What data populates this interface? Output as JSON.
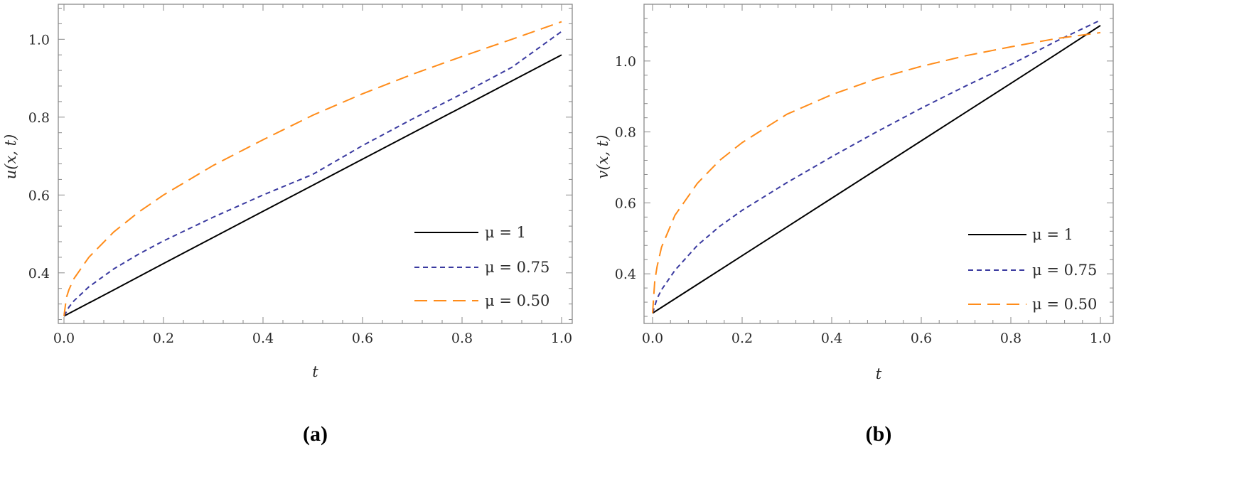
{
  "chart_data": [
    {
      "type": "line",
      "panel_label": "(a)",
      "xlabel": "t",
      "ylabel": "u(x, t)",
      "xlim": [
        0,
        1
      ],
      "ylim": [
        0.27,
        1.09
      ],
      "xticks": [
        "0.0",
        "0.2",
        "0.4",
        "0.6",
        "0.8",
        "1.0"
      ],
      "yticks": [
        "0.4",
        "0.6",
        "0.8",
        "1.0"
      ],
      "legend_position": "bottom-right",
      "series": [
        {
          "name": "μ = 1",
          "style": "solid",
          "color": "#000000",
          "x": [
            0,
            0.1,
            0.2,
            0.3,
            0.4,
            0.5,
            0.6,
            0.7,
            0.8,
            0.9,
            1.0
          ],
          "y": [
            0.289,
            0.356,
            0.424,
            0.491,
            0.558,
            0.625,
            0.692,
            0.759,
            0.826,
            0.893,
            0.96
          ]
        },
        {
          "name": "μ = 0.75",
          "style": "short-dash",
          "color": "#3a3aa0",
          "x": [
            0,
            0.01,
            0.02,
            0.05,
            0.1,
            0.15,
            0.2,
            0.3,
            0.4,
            0.5,
            0.6,
            0.7,
            0.8,
            0.9,
            1.0
          ],
          "y": [
            0.289,
            0.312,
            0.328,
            0.364,
            0.41,
            0.448,
            0.482,
            0.543,
            0.6,
            0.653,
            0.727,
            0.795,
            0.86,
            0.928,
            1.02
          ]
        },
        {
          "name": "μ = 0.50",
          "style": "long-dash",
          "color": "#ff8c1a",
          "x": [
            0,
            0.005,
            0.01,
            0.02,
            0.05,
            0.1,
            0.15,
            0.2,
            0.3,
            0.4,
            0.5,
            0.6,
            0.7,
            0.8,
            0.9,
            1.0
          ],
          "y": [
            0.289,
            0.337,
            0.357,
            0.385,
            0.44,
            0.505,
            0.556,
            0.6,
            0.676,
            0.742,
            0.805,
            0.86,
            0.91,
            0.956,
            1.0,
            1.045
          ]
        }
      ]
    },
    {
      "type": "line",
      "panel_label": "(b)",
      "xlabel": "t",
      "ylabel": "v(x, t)",
      "xlim": [
        0,
        1
      ],
      "ylim": [
        0.26,
        1.16
      ],
      "xticks": [
        "0.0",
        "0.2",
        "0.4",
        "0.6",
        "0.8",
        "1.0"
      ],
      "yticks": [
        "0.4",
        "0.6",
        "0.8",
        "1.0"
      ],
      "legend_position": "bottom-right",
      "series": [
        {
          "name": "μ = 1",
          "style": "solid",
          "color": "#000000",
          "x": [
            0,
            0.1,
            0.2,
            0.3,
            0.4,
            0.5,
            0.6,
            0.7,
            0.8,
            0.9,
            1.0
          ],
          "y": [
            0.289,
            0.37,
            0.451,
            0.532,
            0.613,
            0.694,
            0.775,
            0.856,
            0.937,
            1.018,
            1.1
          ]
        },
        {
          "name": "μ = 0.75",
          "style": "short-dash",
          "color": "#3a3aa0",
          "x": [
            0,
            0.01,
            0.02,
            0.05,
            0.1,
            0.15,
            0.2,
            0.3,
            0.4,
            0.5,
            0.6,
            0.7,
            0.8,
            0.9,
            1.0
          ],
          "y": [
            0.289,
            0.33,
            0.355,
            0.41,
            0.48,
            0.534,
            0.579,
            0.657,
            0.73,
            0.8,
            0.867,
            0.93,
            0.99,
            1.055,
            1.115
          ]
        },
        {
          "name": "μ = 0.50",
          "style": "long-dash",
          "color": "#ff8c1a",
          "x": [
            0,
            0.005,
            0.01,
            0.02,
            0.05,
            0.1,
            0.15,
            0.2,
            0.3,
            0.4,
            0.5,
            0.6,
            0.7,
            0.8,
            0.9,
            1.0
          ],
          "y": [
            0.289,
            0.38,
            0.42,
            0.475,
            0.565,
            0.655,
            0.72,
            0.77,
            0.85,
            0.905,
            0.95,
            0.985,
            1.015,
            1.04,
            1.063,
            1.08
          ]
        }
      ]
    }
  ]
}
